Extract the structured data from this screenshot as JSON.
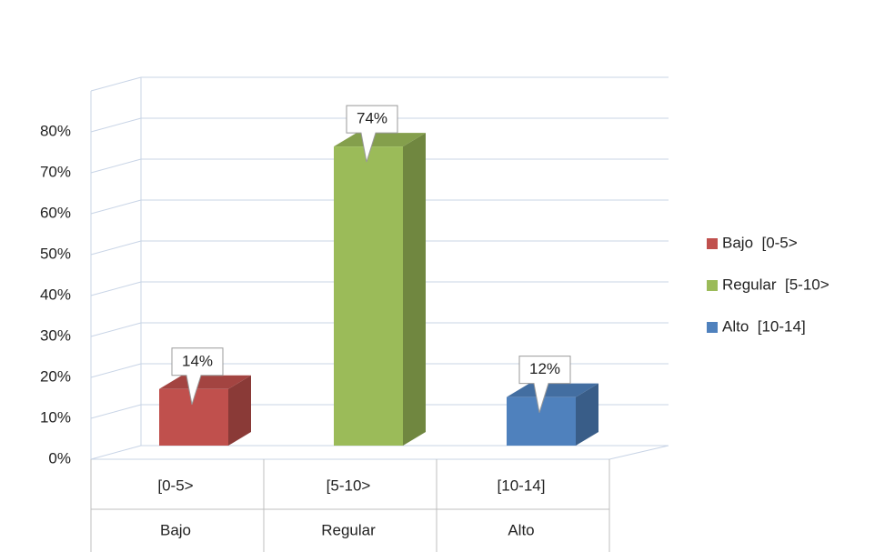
{
  "chart_data": {
    "type": "bar3d",
    "categories": [
      "[0-5>",
      "[5-10>",
      "[10-14]"
    ],
    "groups": [
      "Bajo",
      "Regular",
      "Alto"
    ],
    "legend": [
      "Bajo  [0-5>",
      "Regular  [5-10>",
      "Alto  [10-14]"
    ],
    "colors": [
      "#c0504d",
      "#9bbb59",
      "#4f81bd"
    ],
    "values": [
      14,
      74,
      12
    ],
    "value_labels": [
      "14%",
      "74%",
      "12%"
    ],
    "ylim": [
      0,
      90
    ],
    "yticks": [
      {
        "value": 0,
        "label": "0%"
      },
      {
        "value": 10,
        "label": "10%"
      },
      {
        "value": 20,
        "label": "20%"
      },
      {
        "value": 30,
        "label": "30%"
      },
      {
        "value": 40,
        "label": "40%"
      },
      {
        "value": 50,
        "label": "50%"
      },
      {
        "value": 60,
        "label": "60%"
      },
      {
        "value": 70,
        "label": "70%"
      },
      {
        "value": 80,
        "label": "80%"
      }
    ],
    "grid": true
  }
}
